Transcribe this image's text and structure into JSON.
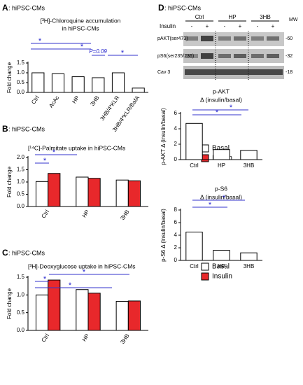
{
  "chart_data": [
    {
      "type": "bar",
      "panel": "A",
      "panel_title": ": hiPSC-CMs",
      "title": [
        "[³H]-Chloroquine accumulation",
        "in hiPSC-CMs"
      ],
      "ylabel": "Fold change",
      "categories": [
        "Ctrl",
        "AcAc",
        "HP",
        "3HB",
        "3HB/4*KLR",
        "3HB/4*KLR/BafA"
      ],
      "values": [
        1.0,
        0.95,
        0.8,
        0.75,
        1.0,
        0.22
      ],
      "color": "#ffffff",
      "ylim": [
        0,
        1.5
      ],
      "yticks": [
        {
          "value": 0,
          "label": "0.0"
        },
        0.5,
        {
          "value": 1,
          "label": "1.0"
        },
        1.5
      ],
      "annotations": [
        "*",
        "*",
        "P=0.09",
        "*"
      ]
    },
    {
      "type": "grouped_bar",
      "panel": "B",
      "panel_title": ": hiPSC-CMs",
      "title": [
        "[¹⁴C]-Palmitate uptake in hiPSC-CMs"
      ],
      "ylabel": "Fold change",
      "categories": [
        "Ctrl",
        "HP",
        "3HB"
      ],
      "series": [
        {
          "name": "Basal",
          "color": "#ffffff",
          "values": [
            1.02,
            1.2,
            1.08
          ]
        },
        {
          "name": "Insulin",
          "color": "#e8282b",
          "values": [
            1.35,
            1.15,
            1.05
          ]
        }
      ],
      "ylim": [
        0,
        2
      ],
      "yticks": [
        {
          "value": 0,
          "label": "0.0"
        },
        0.5,
        {
          "value": 1,
          "label": "1.0"
        },
        1.5,
        {
          "value": 2,
          "label": "2.0"
        }
      ],
      "annotations": [
        "*",
        "*"
      ]
    },
    {
      "type": "grouped_bar",
      "panel": "C",
      "panel_title": ": hiPSC-CMs",
      "title": [
        "[³H]-Deoxyglucose uptake in hiPSC-CMs"
      ],
      "ylabel": "Fold change",
      "categories": [
        "Ctrl",
        "HP",
        "3HB"
      ],
      "series": [
        {
          "name": "Basal",
          "color": "#ffffff",
          "values": [
            1.0,
            1.15,
            0.82
          ]
        },
        {
          "name": "Insulin",
          "color": "#e8282b",
          "values": [
            1.42,
            1.05,
            0.83
          ]
        }
      ],
      "ylim": [
        0,
        1.5
      ],
      "yticks": [
        {
          "value": 0,
          "label": "0.0"
        },
        0.5,
        {
          "value": 1,
          "label": "1.0"
        },
        1.5
      ],
      "annotations": [
        "*",
        "*",
        "*"
      ]
    },
    {
      "type": "bar",
      "title": [
        "p-AKT",
        "Δ (insulin/basal)"
      ],
      "ylabel": "p-AKT Δ (insulin/basal)",
      "categories": [
        "Ctrl",
        "HP",
        "3HB"
      ],
      "values": [
        4.7,
        1.3,
        1.2
      ],
      "color": "#ffffff",
      "ylim": [
        0,
        6
      ],
      "yticks": [
        0,
        2,
        4,
        6
      ],
      "annotations": [
        "*",
        "*"
      ]
    },
    {
      "type": "bar",
      "title": [
        "p-S6",
        "Δ (insulin/basal)"
      ],
      "ylabel": "p-S6 Δ (insulin/basal)",
      "categories": [
        "Ctrl",
        "HP",
        "3HB"
      ],
      "values": [
        4.5,
        1.6,
        1.2
      ],
      "color": "#ffffff",
      "ylim": [
        0,
        8
      ],
      "yticks": [
        0,
        2,
        4,
        6,
        8
      ],
      "annotations": [
        "*",
        "*"
      ]
    }
  ],
  "blot": {
    "panel": "D",
    "panel_title": ": hiPSC-CMs",
    "groups": [
      "Ctrl",
      "HP",
      "3HB"
    ],
    "mw_label": "MW",
    "treatment": "Insulin",
    "signs": [
      "-",
      "+",
      "-",
      "+",
      "-",
      "+"
    ],
    "rows": [
      "pAKT(ser473)",
      "pS6(ser235/236)",
      "Cav 3"
    ],
    "mw": [
      "-60",
      "-32",
      "-18"
    ]
  }
}
